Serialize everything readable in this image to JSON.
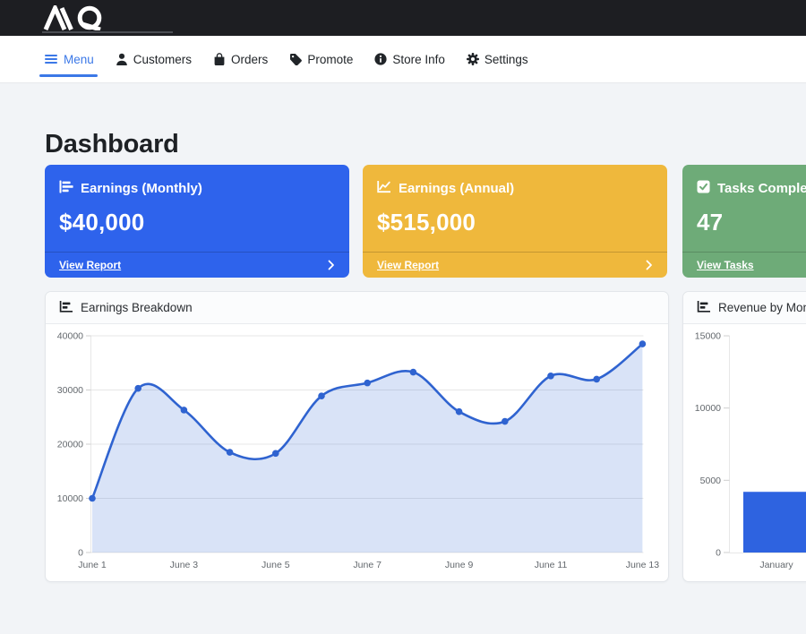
{
  "topbar": {
    "logo": "MQ"
  },
  "nav": {
    "active_color": "#3b78e7",
    "items": [
      {
        "label": "Menu",
        "icon": "hamburger-icon",
        "active": true
      },
      {
        "label": "Customers",
        "icon": "user-icon",
        "active": false
      },
      {
        "label": "Orders",
        "icon": "bag-icon",
        "active": false
      },
      {
        "label": "Promote",
        "icon": "tag-icon",
        "active": false
      },
      {
        "label": "Store Info",
        "icon": "info-icon",
        "active": false
      },
      {
        "label": "Settings",
        "icon": "gear-icon",
        "active": false
      }
    ]
  },
  "page": {
    "title": "Dashboard"
  },
  "stat_cards": [
    {
      "title": "Earnings (Monthly)",
      "value": "$40,000",
      "link_label": "View Report",
      "color": "#2e63ec",
      "icon": "bar-chart-icon"
    },
    {
      "title": "Earnings (Annual)",
      "value": "$515,000",
      "link_label": "View Report",
      "color": "#efb83c",
      "icon": "line-chart-icon"
    },
    {
      "title": "Tasks Completed",
      "value": "47",
      "link_label": "View Tasks",
      "color": "#6eab78",
      "icon": "check-square-icon"
    }
  ],
  "chart_data": [
    {
      "type": "area",
      "title": "Earnings Breakdown",
      "x": [
        "June 1",
        "June 2",
        "June 3",
        "June 4",
        "June 5",
        "June 6",
        "June 7",
        "June 8",
        "June 9",
        "June 10",
        "June 11",
        "June 12",
        "June 13"
      ],
      "values": [
        10000,
        30300,
        26300,
        18500,
        18300,
        28900,
        31300,
        33300,
        26000,
        24200,
        32600,
        32000,
        38500
      ],
      "xtick_labels": [
        "June 1",
        "June 3",
        "June 5",
        "June 7",
        "June 9",
        "June 11",
        "June 13"
      ],
      "yticks": [
        0,
        10000,
        20000,
        30000,
        40000
      ],
      "ylim": [
        0,
        40000
      ],
      "grid": true,
      "legend": false,
      "line_color": "#2f63d0",
      "fill_color": "rgba(47,99,208,0.18)",
      "point_color": "#2f63d0"
    },
    {
      "type": "bar",
      "title": "Revenue by Month",
      "categories": [
        "January"
      ],
      "values": [
        4200
      ],
      "yticks": [
        0,
        5000,
        10000,
        15000
      ],
      "ylim": [
        0,
        15000
      ],
      "grid": false,
      "legend": false,
      "bar_color": "#2e63e0"
    }
  ]
}
